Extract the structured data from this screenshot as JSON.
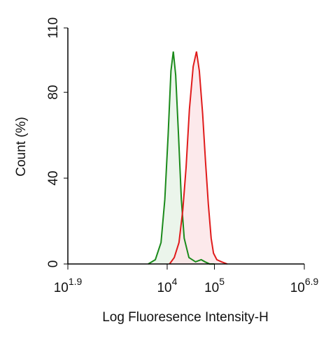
{
  "chart_data": {
    "type": "histogram-line",
    "y_label": "Count  (%)",
    "x_label": "Log Fluoresence Intensity-H",
    "x_scale": "log",
    "x_tick_base": "10",
    "xlim": [
      1.9,
      6.9
    ],
    "xticks": [
      1.9,
      4,
      5,
      6.9
    ],
    "ylim": [
      0,
      110
    ],
    "yticks": [
      0,
      40,
      80,
      110
    ],
    "series": [
      {
        "color": "#1a8a1a",
        "fill": "#e6f2e6",
        "x": [
          3.6,
          3.75,
          3.87,
          3.95,
          4.02,
          4.08,
          4.13,
          4.18,
          4.24,
          4.3,
          4.36,
          4.46,
          4.6,
          4.72,
          4.8,
          4.9,
          5.0
        ],
        "values": [
          0,
          2,
          10,
          30,
          60,
          90,
          99,
          88,
          60,
          30,
          12,
          3,
          1,
          2,
          1,
          0,
          0
        ]
      },
      {
        "color": "#e01b1b",
        "fill": "#fbe3e6",
        "x": [
          4.05,
          4.15,
          4.25,
          4.33,
          4.4,
          4.47,
          4.55,
          4.62,
          4.68,
          4.75,
          4.81,
          4.87,
          4.93,
          4.98,
          5.05,
          5.15,
          5.27
        ],
        "values": [
          0,
          3,
          10,
          25,
          45,
          72,
          92,
          99,
          90,
          70,
          48,
          28,
          12,
          5,
          2,
          1,
          0
        ]
      }
    ]
  }
}
